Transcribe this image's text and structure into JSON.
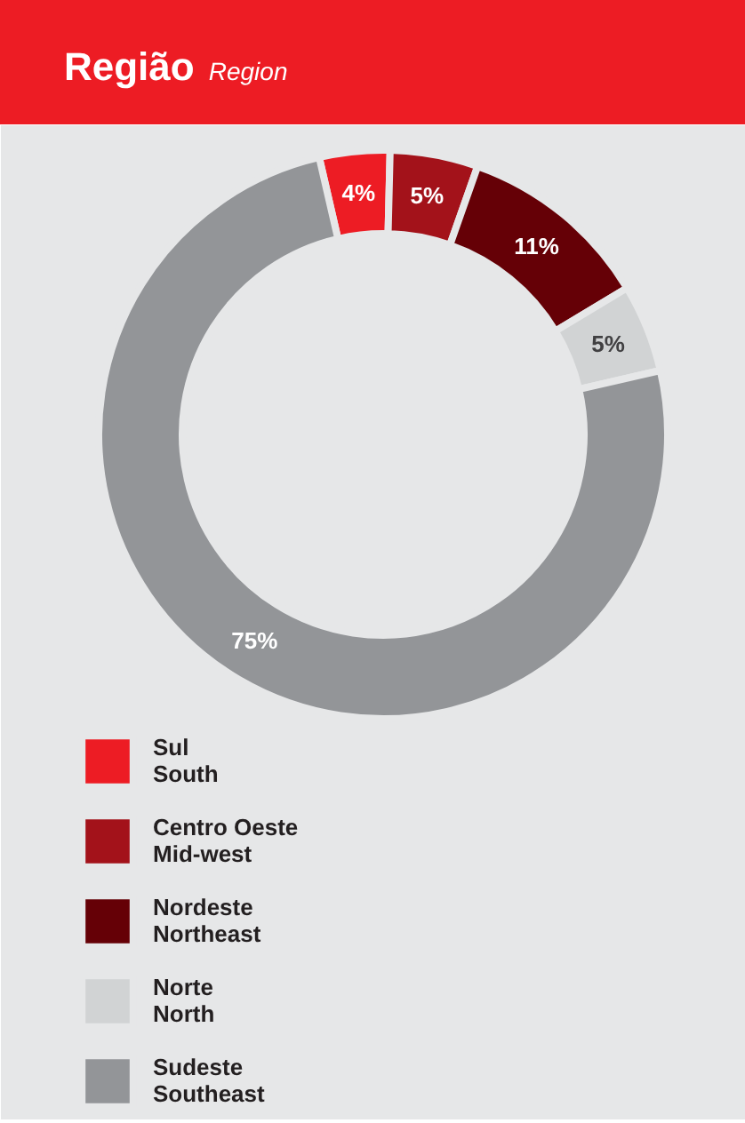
{
  "chart_data": {
    "type": "donut",
    "title": "Região",
    "subtitle": "Region",
    "categories": [
      "Sul\nSouth",
      "Centro Oeste\nMid-west",
      "Nordeste\nNortheast",
      "Norte\nNorth",
      "Sudeste\nSoutheast"
    ],
    "values": [
      4,
      5,
      11,
      5,
      75
    ],
    "colors": [
      "#ed1c24",
      "#a3121a",
      "#650006",
      "#d1d3d4",
      "#939598"
    ],
    "value_labels": [
      "4%",
      "5%",
      "11%",
      "5%",
      "75%"
    ],
    "legend": "bottom left"
  }
}
